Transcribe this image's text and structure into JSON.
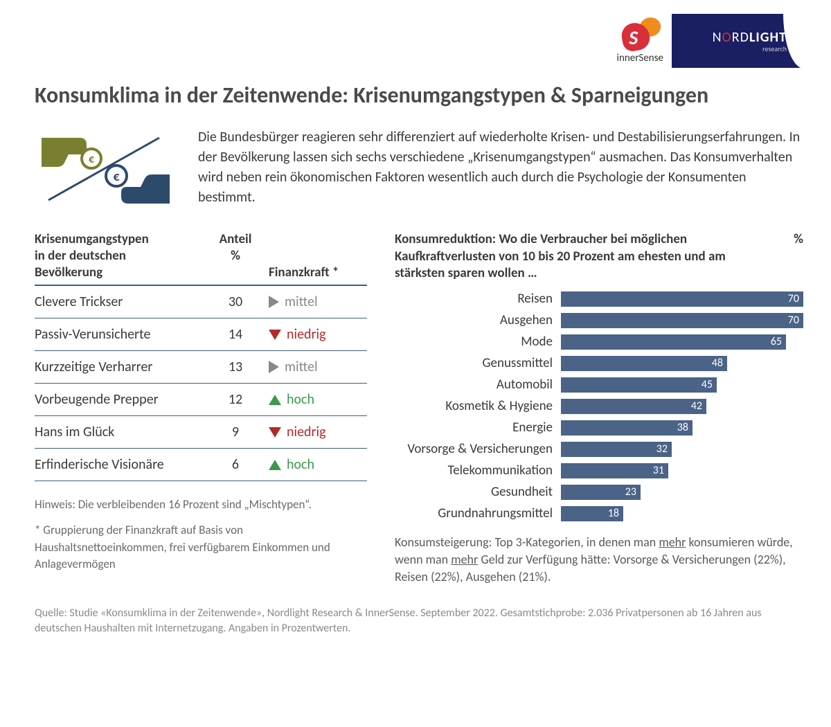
{
  "logos": {
    "innersense": "innerSense",
    "nordlight_main": "NORDLIGHT",
    "nordlight_sub": "research"
  },
  "title": "Konsumklima in der Zeitenwende: Krisenumgangstypen & Sparneigungen",
  "intro": "Die Bundesbürger reagieren sehr differenziert auf wiederholte Krisen- und Destabilisierungserfahrungen. In der Bevölkerung lassen sich sechs verschiedene „Krisenumgangstypen“ ausmachen. Das Konsumverhalten wird neben rein ökonomischen Faktoren wesentlich auch durch die Psychologie der Konsumenten bestimmt.",
  "hands_icon": {
    "top_hand_color": "#7a7f30",
    "bottom_hand_color": "#2e4a6a",
    "coin_stroke": "#888",
    "slash_color": "#2e4a6a"
  },
  "table": {
    "header": {
      "col1_l1": "Krisenumgangstypen",
      "col1_l2": "in der deutschen",
      "col1_l3": "Bevölkerung",
      "col2_l1": "Anteil",
      "col2_l2": "%",
      "col3": "Finanzkraft *"
    },
    "border_color": "#3f5f7a",
    "finanzkraft_colors": {
      "mittel": "#888888",
      "niedrig": "#b22a2a",
      "hoch": "#3a9a4a"
    },
    "rows": [
      {
        "name": "Clevere Trickser",
        "pct": "30",
        "fk": "mittel",
        "fk_label": "mittel"
      },
      {
        "name": "Passiv-Verunsicherte",
        "pct": "14",
        "fk": "niedrig",
        "fk_label": "niedrig"
      },
      {
        "name": "Kurzzeitige Verharrer",
        "pct": "13",
        "fk": "mittel",
        "fk_label": "mittel"
      },
      {
        "name": "Vorbeugende Prepper",
        "pct": "12",
        "fk": "hoch",
        "fk_label": "hoch"
      },
      {
        "name": "Hans im Glück",
        "pct": "9",
        "fk": "niedrig",
        "fk_label": "niedrig"
      },
      {
        "name": "Erfinderische Visionäre",
        "pct": "6",
        "fk": "hoch",
        "fk_label": "hoch"
      }
    ],
    "note1": "Hinweis: Die verbleibenden 16 Prozent sind „Mischtypen“.",
    "note2": "* Gruppierung der Finanzkraft auf Basis von Haushaltsnettoeinkommen, frei verfügbarem Einkommen und Anlagevermögen"
  },
  "chart": {
    "type": "bar-horizontal",
    "title": "Konsumreduktion: Wo die Verbraucher bei möglichen Kaufkraftverlusten von 10 bis 20 Prozent am ehesten und am stärksten sparen wollen …",
    "pct_header": "%",
    "bar_color": "#4a6386",
    "value_inside_color": "#ffffff",
    "value_outside_color": "#3a3a3a",
    "max_value": 70,
    "value_font_size": 16,
    "label_font_size": 19,
    "bars": [
      {
        "label": "Reisen",
        "value": 70
      },
      {
        "label": "Ausgehen",
        "value": 70
      },
      {
        "label": "Mode",
        "value": 65
      },
      {
        "label": "Genussmittel",
        "value": 48
      },
      {
        "label": "Automobil",
        "value": 45
      },
      {
        "label": "Kosmetik & Hygiene",
        "value": 42
      },
      {
        "label": "Energie",
        "value": 38
      },
      {
        "label": "Vorsorge & Versicherungen",
        "value": 32
      },
      {
        "label": "Telekommunikation",
        "value": 31
      },
      {
        "label": "Gesundheit",
        "value": 23
      },
      {
        "label": "Grundnahrungsmittel",
        "value": 18
      }
    ],
    "footer_prefix": "Konsumsteigerung: Top 3-Kategorien, in denen man ",
    "footer_u1": "mehr",
    "footer_mid": " konsumieren würde, wenn man ",
    "footer_u2": "mehr",
    "footer_suffix": " Geld zur Verfügung hätte: Vorsorge & Versicherungen (22%), Reisen (22%), Ausgehen (21%)."
  },
  "source": "Quelle: Studie «Konsumklima in der Zeitenwende», Nordlight Research & InnerSense. September 2022. Gesamtstichprobe: 2.036 Privatpersonen ab 16 Jahren aus deutschen Haushalten mit Internetzugang. Angaben in Prozentwerten."
}
